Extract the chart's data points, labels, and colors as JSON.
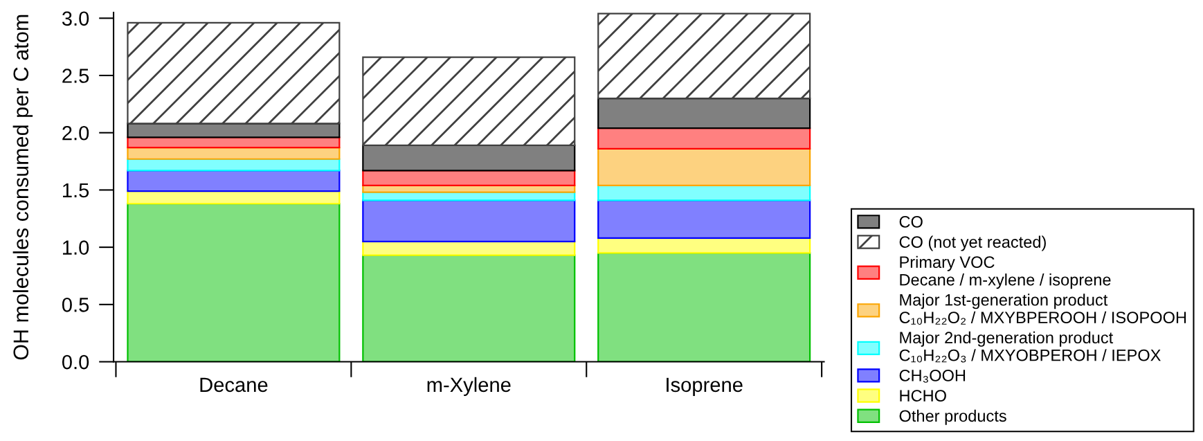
{
  "chart_data": {
    "type": "bar",
    "stacked": true,
    "ylabel": "OH molecules consumed per C atom",
    "categories": [
      "Decane",
      "m-Xylene",
      "Isoprene"
    ],
    "ylim": [
      0,
      3.05
    ],
    "yticks": [
      {
        "value": 0,
        "label": "0.0"
      },
      0.5,
      {
        "value": 1,
        "label": "1.0"
      },
      1.5,
      {
        "value": 2,
        "label": "2.0"
      },
      2.5,
      {
        "value": 3,
        "label": "3.0"
      }
    ],
    "legend": "right",
    "series": [
      {
        "name": "Other products",
        "color": "#80e080",
        "values": [
          1.38,
          0.93,
          0.95
        ]
      },
      {
        "name": "HCHO",
        "color": "#ffff80",
        "values": [
          0.11,
          0.12,
          0.13
        ]
      },
      {
        "name": "CH₃OOH",
        "color": "#8080ff",
        "values": [
          0.18,
          0.36,
          0.33
        ]
      },
      {
        "name": "Major 2nd-generation product\nC₁₀H₂₂O₃ / MXYOBPEROH / IEPOX",
        "color": "#80ffff",
        "values": [
          0.1,
          0.07,
          0.13
        ]
      },
      {
        "name": "Major 1st-generation product\nC₁₀H₂₂O₂ / MXYBPEROOH / ISOPOOH",
        "color": "#fdd280",
        "values": [
          0.1,
          0.06,
          0.32
        ]
      },
      {
        "name": "Primary VOC\nDecane / m-xylene / isoprene",
        "color": "#ff8080",
        "values": [
          0.09,
          0.13,
          0.18
        ]
      },
      {
        "name": "CO",
        "color": "#808080",
        "values": [
          0.12,
          0.22,
          0.26
        ]
      },
      {
        "name": "CO (not yet reacted)",
        "color": "#404040",
        "values": [
          0.88,
          0.77,
          0.74
        ]
      }
    ]
  }
}
